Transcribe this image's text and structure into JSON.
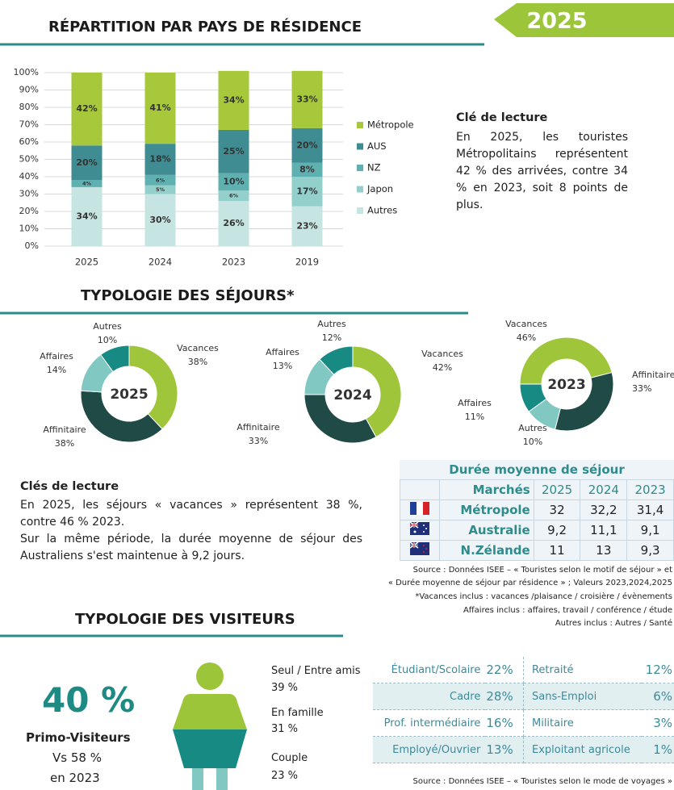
{
  "badge": "2025",
  "chart_data": [
    {
      "type": "stacked_bar",
      "title": "RÉPARTITION PAR PAYS DE RÉSIDENCE",
      "categories": [
        "2025",
        "2024",
        "2023",
        "2019"
      ],
      "series": [
        {
          "name": "Autres",
          "color": "#c6e4e1",
          "values": [
            34,
            30,
            26,
            23
          ],
          "value_labels": [
            "34%",
            "30%",
            "26%",
            "23%"
          ]
        },
        {
          "name": "Japon",
          "color": "#93cfcb",
          "values": [
            0,
            5,
            6,
            17
          ],
          "value_labels": [
            null,
            "5%",
            "6%",
            "17%"
          ]
        },
        {
          "name": "NZ",
          "color": "#5fb0b0",
          "values": [
            4,
            6,
            10,
            8
          ],
          "value_labels": [
            "4%",
            "6%",
            "10%",
            "8%"
          ]
        },
        {
          "name": "AUS",
          "color": "#3f8d92",
          "values": [
            20,
            18,
            25,
            20
          ],
          "value_labels": [
            "20%",
            "18%",
            "25%",
            "20%"
          ]
        },
        {
          "name": "Métropole",
          "color": "#a6c83a",
          "values": [
            42,
            41,
            34,
            33
          ],
          "value_labels": [
            "42%",
            "41%",
            "34%",
            "33%"
          ]
        }
      ],
      "ylim": [
        0,
        100
      ],
      "yticks": [
        {
          "value": 0,
          "label": "0%"
        },
        {
          "value": 10,
          "label": "10%"
        },
        {
          "value": 20,
          "label": "20%"
        },
        {
          "value": 30,
          "label": "30%"
        },
        {
          "value": 40,
          "label": "40%"
        },
        {
          "value": 50,
          "label": "50%"
        },
        {
          "value": 60,
          "label": "60%"
        },
        {
          "value": 70,
          "label": "70%"
        },
        {
          "value": 80,
          "label": "80%"
        },
        {
          "value": 90,
          "label": "90%"
        },
        {
          "value": 100,
          "label": "100%"
        }
      ],
      "grid": true,
      "legend": "right"
    },
    {
      "type": "donut",
      "center_label": "2025",
      "categories": [
        "Vacances",
        "Affinitaire",
        "Affaires",
        "Autres"
      ],
      "values": [
        38,
        38,
        14,
        10
      ],
      "value_labels": [
        "38%",
        "38%",
        "14%",
        "10%"
      ],
      "colors": [
        "#9fc63b",
        "#1f4a46",
        "#82c8c2",
        "#178a84"
      ]
    },
    {
      "type": "donut",
      "center_label": "2024",
      "categories": [
        "Vacances",
        "Affinitaire",
        "Affaires",
        "Autres"
      ],
      "values": [
        42,
        33,
        13,
        12
      ],
      "value_labels": [
        "42%",
        "33%",
        "13%",
        "12%"
      ],
      "colors": [
        "#9fc63b",
        "#1f4a46",
        "#82c8c2",
        "#178a84"
      ]
    },
    {
      "type": "donut",
      "center_label": "2023",
      "categories": [
        "Vacances",
        "Affinitaire",
        "Affaires",
        "Autres"
      ],
      "values": [
        46,
        33,
        11,
        10
      ],
      "value_labels": [
        "46%",
        "33%",
        "11%",
        "10%"
      ],
      "colors": [
        "#9fc63b",
        "#1f4a46",
        "#82c8c2",
        "#178a84"
      ]
    }
  ],
  "reading_key_1": {
    "title": "Clé de lecture",
    "text": "En 2025, les touristes Métropolitains représentent 42 % des arrivées, contre 34 % en 2023, soit 8 points de plus."
  },
  "stays_section_title": "TYPOLOGIE DES SÉJOURS*",
  "reading_key_2": {
    "title": "Clés de lecture",
    "paragraphs": [
      "En 2025, les séjours « vacances » représentent 38 %, contre 46 % 2023.",
      "Sur la même période, la durée moyenne de séjour des Australiens s'est maintenue à 9,2 jours."
    ]
  },
  "duration_table": {
    "title": "Durée moyenne de séjour",
    "header": [
      "Marchés",
      "2025",
      "2024",
      "2023"
    ],
    "rows": [
      [
        "Métropole",
        "32",
        "32,2",
        "31,4"
      ],
      [
        "Australie",
        "9,2",
        "11,1",
        "9,1"
      ],
      [
        "N.Zélande",
        "11",
        "13",
        "9,3"
      ]
    ]
  },
  "sources": [
    "Source : Données ISEE – « Touristes selon le motif de séjour » et",
    "« Durée moyenne de séjour par résidence » ; Valeurs 2023,2024,2025",
    "*Vacances inclus : vacances /plaisance / croisière / évènements",
    "Affaires inclus : affaires, travail / conférence / étude",
    "Autres inclus : Autres / Santé"
  ],
  "visitors_section_title": "TYPOLOGIE DES VISITEURS",
  "visitors": {
    "first_time_value": "40 %",
    "first_time_label": "Primo-Visiteurs",
    "comparison": "Vs 58 %",
    "comparison_year": "en 2023",
    "companions": [
      {
        "label": "Seul / Entre amis",
        "value": "39 %"
      },
      {
        "label": "En famille",
        "value": "31 %"
      },
      {
        "label": "Couple",
        "value": "23 %"
      }
    ],
    "professions": [
      [
        {
          "label": "Étudiant/Scolaire",
          "value": "22%"
        },
        {
          "label": "Retraité",
          "value": "12%"
        }
      ],
      [
        {
          "label": "Cadre",
          "value": "28%"
        },
        {
          "label": "Sans-Emploi",
          "value": "6%"
        }
      ],
      [
        {
          "label": "Prof. intermédiaire",
          "value": "16%"
        },
        {
          "label": "Militaire",
          "value": "3%"
        }
      ],
      [
        {
          "label": "Employé/Ouvrier",
          "value": "13%"
        },
        {
          "label": "Exploitant agricole",
          "value": "1%"
        }
      ]
    ],
    "source": "Source : Données ISEE – « Touristes selon le mode de voyages »"
  }
}
